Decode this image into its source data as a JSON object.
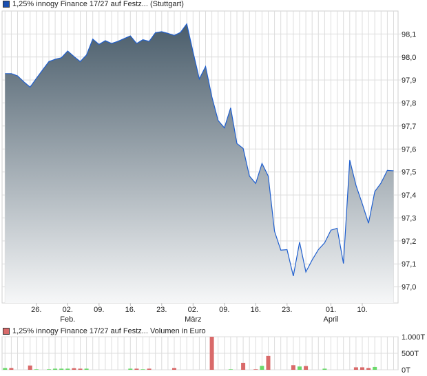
{
  "chart_data": [
    {
      "type": "area",
      "legend": "1,25% innogy Finance 17/27 auf Festz... (Stuttgart)",
      "legend_color": "#1a4fb0",
      "line_color": "#1f5fcf",
      "fill_top_color": "#4a5d6b",
      "fill_bottom_color": "#f6f7f8",
      "ylim": [
        96.93,
        98.2
      ],
      "yticks": [
        97.0,
        97.1,
        97.2,
        97.3,
        97.4,
        97.5,
        97.6,
        97.7,
        97.8,
        97.9,
        98.0,
        98.1
      ],
      "ytick_labels": [
        "97,0",
        "97,1",
        "97,2",
        "97,3",
        "97,4",
        "97,5",
        "97,6",
        "97,7",
        "97,8",
        "97,9",
        "98,0",
        "98,1"
      ],
      "grid": true,
      "xticks": [
        {
          "index": 5,
          "day": "26.",
          "month": ""
        },
        {
          "index": 10,
          "day": "02.",
          "month": "Feb."
        },
        {
          "index": 15,
          "day": "09.",
          "month": ""
        },
        {
          "index": 20,
          "day": "16.",
          "month": ""
        },
        {
          "index": 25,
          "day": "23.",
          "month": ""
        },
        {
          "index": 30,
          "day": "02.",
          "month": "März"
        },
        {
          "index": 35,
          "day": "09.",
          "month": ""
        },
        {
          "index": 40,
          "day": "16.",
          "month": ""
        },
        {
          "index": 45,
          "day": "23.",
          "month": ""
        },
        {
          "index": 52,
          "day": "01.",
          "month": "April"
        },
        {
          "index": 57,
          "day": "10.",
          "month": ""
        }
      ],
      "values": [
        97.928,
        97.928,
        97.918,
        97.892,
        97.869,
        97.907,
        97.944,
        97.98,
        97.99,
        97.997,
        98.026,
        98.002,
        97.98,
        98.009,
        98.078,
        98.055,
        98.071,
        98.059,
        98.068,
        98.08,
        98.092,
        98.059,
        98.075,
        98.068,
        98.106,
        98.11,
        98.103,
        98.094,
        98.107,
        98.144,
        98.022,
        97.905,
        97.959,
        97.827,
        97.724,
        97.692,
        97.779,
        97.624,
        97.602,
        97.482,
        97.45,
        97.537,
        97.482,
        97.242,
        97.16,
        97.162,
        97.047,
        97.195,
        97.065,
        97.117,
        97.162,
        97.192,
        97.247,
        97.255,
        97.102,
        97.552,
        97.442,
        97.362,
        97.277,
        97.415,
        97.452,
        97.507,
        97.505
      ]
    },
    {
      "type": "bar",
      "legend": "1,25% innogy Finance 17/27 auf Festz... Volumen in Euro",
      "legend_color": "#d96a6a",
      "up_color": "#6bd96b",
      "down_color": "#d96a6a",
      "ylim": [
        0,
        1000
      ],
      "unit": "T",
      "yticks": [
        0,
        500,
        1000
      ],
      "ytick_labels": [
        "0T",
        "500T",
        "1.000T"
      ],
      "bars": [
        {
          "index": 0,
          "value": 55,
          "dir": "up"
        },
        {
          "index": 1,
          "value": 55,
          "dir": "down"
        },
        {
          "index": 4,
          "value": 130,
          "dir": "down"
        },
        {
          "index": 5,
          "value": 15,
          "dir": "up"
        },
        {
          "index": 7,
          "value": 15,
          "dir": "up"
        },
        {
          "index": 8,
          "value": 35,
          "dir": "up"
        },
        {
          "index": 9,
          "value": 35,
          "dir": "up"
        },
        {
          "index": 10,
          "value": 35,
          "dir": "up"
        },
        {
          "index": 11,
          "value": 50,
          "dir": "down"
        },
        {
          "index": 12,
          "value": 35,
          "dir": "down"
        },
        {
          "index": 13,
          "value": 35,
          "dir": "up"
        },
        {
          "index": 20,
          "value": 35,
          "dir": "up"
        },
        {
          "index": 21,
          "value": 35,
          "dir": "down"
        },
        {
          "index": 22,
          "value": 15,
          "dir": "up"
        },
        {
          "index": 23,
          "value": 35,
          "dir": "down"
        },
        {
          "index": 27,
          "value": 55,
          "dir": "down"
        },
        {
          "index": 33,
          "value": 1000,
          "dir": "down"
        },
        {
          "index": 36,
          "value": 15,
          "dir": "up"
        },
        {
          "index": 38,
          "value": 210,
          "dir": "down"
        },
        {
          "index": 40,
          "value": 15,
          "dir": "down"
        },
        {
          "index": 41,
          "value": 120,
          "dir": "up"
        },
        {
          "index": 42,
          "value": 420,
          "dir": "down"
        },
        {
          "index": 46,
          "value": 140,
          "dir": "down"
        },
        {
          "index": 47,
          "value": 100,
          "dir": "up"
        },
        {
          "index": 48,
          "value": 115,
          "dir": "down"
        },
        {
          "index": 51,
          "value": 35,
          "dir": "up"
        },
        {
          "index": 56,
          "value": 75,
          "dir": "down"
        },
        {
          "index": 57,
          "value": 75,
          "dir": "down"
        },
        {
          "index": 58,
          "value": 55,
          "dir": "down"
        },
        {
          "index": 59,
          "value": 85,
          "dir": "up"
        }
      ]
    }
  ]
}
